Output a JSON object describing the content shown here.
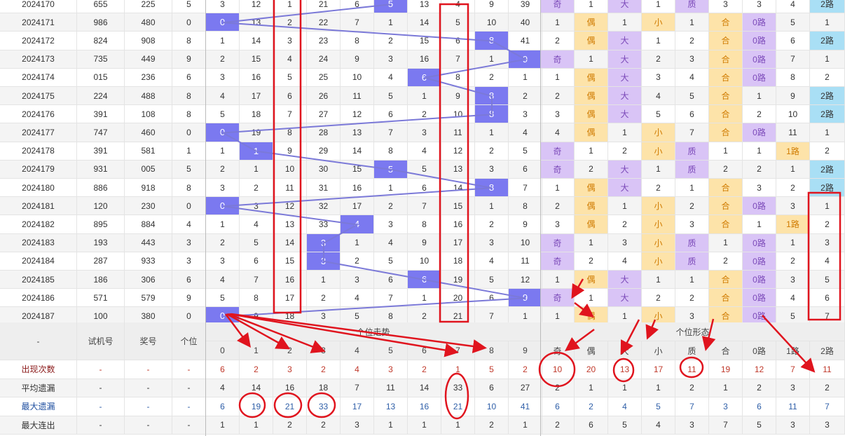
{
  "header": {
    "dash": "-",
    "test_num": "试机号",
    "prize_num": "奖号",
    "units": "个位",
    "trend_group": "个位走势",
    "form_group": "个位形态",
    "digits": [
      "0",
      "1",
      "2",
      "3",
      "4",
      "5",
      "6",
      "7",
      "8",
      "9"
    ],
    "forms": [
      "奇",
      "偶",
      "大",
      "小",
      "质",
      "合",
      "0路",
      "1路",
      "2路"
    ]
  },
  "rows": [
    {
      "issue": "2024170",
      "test": "655",
      "prize": "225",
      "unit": "5",
      "trend": [
        "3",
        "12",
        "1",
        "21",
        "6",
        "5",
        "13",
        "4",
        "9",
        "39"
      ],
      "forms": [
        "奇",
        "1",
        "大",
        "1",
        "质",
        "3",
        "3",
        "4",
        "2路"
      ]
    },
    {
      "issue": "2024171",
      "test": "986",
      "prize": "480",
      "unit": "0",
      "trend": [
        "0",
        "13",
        "2",
        "22",
        "7",
        "1",
        "14",
        "5",
        "10",
        "40"
      ],
      "forms": [
        "1",
        "偶",
        "1",
        "小",
        "1",
        "合",
        "0路",
        "5",
        "1"
      ]
    },
    {
      "issue": "2024172",
      "test": "824",
      "prize": "908",
      "unit": "8",
      "trend": [
        "1",
        "14",
        "3",
        "23",
        "8",
        "2",
        "15",
        "6",
        "8",
        "41"
      ],
      "forms": [
        "2",
        "偶",
        "大",
        "1",
        "2",
        "合",
        "0路",
        "6",
        "2路"
      ]
    },
    {
      "issue": "2024173",
      "test": "735",
      "prize": "449",
      "unit": "9",
      "trend": [
        "2",
        "15",
        "4",
        "24",
        "9",
        "3",
        "16",
        "7",
        "1",
        "9"
      ],
      "forms": [
        "奇",
        "1",
        "大",
        "2",
        "3",
        "合",
        "0路",
        "7",
        "1"
      ]
    },
    {
      "issue": "2024174",
      "test": "015",
      "prize": "236",
      "unit": "6",
      "trend": [
        "3",
        "16",
        "5",
        "25",
        "10",
        "4",
        "6",
        "8",
        "2",
        "1"
      ],
      "forms": [
        "1",
        "偶",
        "大",
        "3",
        "4",
        "合",
        "0路",
        "8",
        "2"
      ]
    },
    {
      "issue": "2024175",
      "test": "224",
      "prize": "488",
      "unit": "8",
      "trend": [
        "4",
        "17",
        "6",
        "26",
        "11",
        "5",
        "1",
        "9",
        "8",
        "2"
      ],
      "forms": [
        "2",
        "偶",
        "大",
        "4",
        "5",
        "合",
        "1",
        "9",
        "2路"
      ]
    },
    {
      "issue": "2024176",
      "test": "391",
      "prize": "108",
      "unit": "8",
      "trend": [
        "5",
        "18",
        "7",
        "27",
        "12",
        "6",
        "2",
        "10",
        "8",
        "3"
      ],
      "forms": [
        "3",
        "偶",
        "大",
        "5",
        "6",
        "合",
        "2",
        "10",
        "2路"
      ]
    },
    {
      "issue": "2024177",
      "test": "747",
      "prize": "460",
      "unit": "0",
      "trend": [
        "0",
        "19",
        "8",
        "28",
        "13",
        "7",
        "3",
        "11",
        "1",
        "4"
      ],
      "forms": [
        "4",
        "偶",
        "1",
        "小",
        "7",
        "合",
        "0路",
        "11",
        "1"
      ]
    },
    {
      "issue": "2024178",
      "test": "391",
      "prize": "581",
      "unit": "1",
      "trend": [
        "1",
        "1",
        "9",
        "29",
        "14",
        "8",
        "4",
        "12",
        "2",
        "5"
      ],
      "forms": [
        "奇",
        "1",
        "2",
        "小",
        "质",
        "1",
        "1",
        "1路",
        "2"
      ]
    },
    {
      "issue": "2024179",
      "test": "931",
      "prize": "005",
      "unit": "5",
      "trend": [
        "2",
        "1",
        "10",
        "30",
        "15",
        "5",
        "5",
        "13",
        "3",
        "6"
      ],
      "forms": [
        "奇",
        "2",
        "大",
        "1",
        "质",
        "2",
        "2",
        "1",
        "2路"
      ]
    },
    {
      "issue": "2024180",
      "test": "886",
      "prize": "918",
      "unit": "8",
      "trend": [
        "3",
        "2",
        "11",
        "31",
        "16",
        "1",
        "6",
        "14",
        "8",
        "7"
      ],
      "forms": [
        "1",
        "偶",
        "大",
        "2",
        "1",
        "合",
        "3",
        "2",
        "2路"
      ]
    },
    {
      "issue": "2024181",
      "test": "120",
      "prize": "230",
      "unit": "0",
      "trend": [
        "0",
        "3",
        "12",
        "32",
        "17",
        "2",
        "7",
        "15",
        "1",
        "8"
      ],
      "forms": [
        "2",
        "偶",
        "1",
        "小",
        "2",
        "合",
        "0路",
        "3",
        "1"
      ]
    },
    {
      "issue": "2024182",
      "test": "895",
      "prize": "884",
      "unit": "4",
      "trend": [
        "1",
        "4",
        "13",
        "33",
        "4",
        "3",
        "8",
        "16",
        "2",
        "9"
      ],
      "forms": [
        "3",
        "偶",
        "2",
        "小",
        "3",
        "合",
        "1",
        "1路",
        "2"
      ]
    },
    {
      "issue": "2024183",
      "test": "193",
      "prize": "443",
      "unit": "3",
      "trend": [
        "2",
        "5",
        "14",
        "3",
        "1",
        "4",
        "9",
        "17",
        "3",
        "10"
      ],
      "forms": [
        "奇",
        "1",
        "3",
        "小",
        "质",
        "1",
        "0路",
        "1",
        "3"
      ]
    },
    {
      "issue": "2024184",
      "test": "287",
      "prize": "933",
      "unit": "3",
      "trend": [
        "3",
        "6",
        "15",
        "3",
        "2",
        "5",
        "10",
        "18",
        "4",
        "11"
      ],
      "forms": [
        "奇",
        "2",
        "4",
        "小",
        "质",
        "2",
        "0路",
        "2",
        "4"
      ]
    },
    {
      "issue": "2024185",
      "test": "186",
      "prize": "306",
      "unit": "6",
      "trend": [
        "4",
        "7",
        "16",
        "1",
        "3",
        "6",
        "6",
        "19",
        "5",
        "12"
      ],
      "forms": [
        "1",
        "偶",
        "大",
        "1",
        "1",
        "合",
        "0路",
        "3",
        "5"
      ]
    },
    {
      "issue": "2024186",
      "test": "571",
      "prize": "579",
      "unit": "9",
      "trend": [
        "5",
        "8",
        "17",
        "2",
        "4",
        "7",
        "1",
        "20",
        "6",
        "9"
      ],
      "forms": [
        "奇",
        "1",
        "大",
        "2",
        "2",
        "合",
        "0路",
        "4",
        "6"
      ]
    },
    {
      "issue": "2024187",
      "test": "100",
      "prize": "380",
      "unit": "0",
      "trend": [
        "0",
        "9",
        "18",
        "3",
        "5",
        "8",
        "2",
        "21",
        "7",
        "1"
      ],
      "forms": [
        "1",
        "偶",
        "1",
        "小",
        "3",
        "合",
        "0路",
        "5",
        "7"
      ]
    }
  ],
  "hot_index": [
    5,
    0,
    8,
    9,
    6,
    8,
    8,
    0,
    1,
    5,
    8,
    0,
    4,
    3,
    3,
    6,
    9,
    0
  ],
  "stats": [
    {
      "label": "出现次数",
      "kind": "red",
      "values": [
        "6",
        "2",
        "3",
        "2",
        "4",
        "3",
        "2",
        "1",
        "5",
        "2",
        "10",
        "20",
        "13",
        "17",
        "11",
        "19",
        "12",
        "7",
        "11"
      ]
    },
    {
      "label": "平均遗漏",
      "kind": "dark",
      "values": [
        "4",
        "14",
        "16",
        "18",
        "7",
        "11",
        "14",
        "33",
        "6",
        "27",
        "2",
        "1",
        "1",
        "1",
        "2",
        "1",
        "2",
        "3",
        "2"
      ]
    },
    {
      "label": "最大遗漏",
      "kind": "blue",
      "values": [
        "6",
        "19",
        "21",
        "33",
        "17",
        "13",
        "16",
        "21",
        "10",
        "41",
        "6",
        "2",
        "4",
        "5",
        "7",
        "3",
        "6",
        "11",
        "7"
      ]
    },
    {
      "label": "最大连出",
      "kind": "dark",
      "values": [
        "1",
        "1",
        "2",
        "2",
        "3",
        "1",
        "1",
        "1",
        "2",
        "1",
        "2",
        "6",
        "5",
        "4",
        "3",
        "7",
        "5",
        "3",
        "3"
      ]
    }
  ]
}
